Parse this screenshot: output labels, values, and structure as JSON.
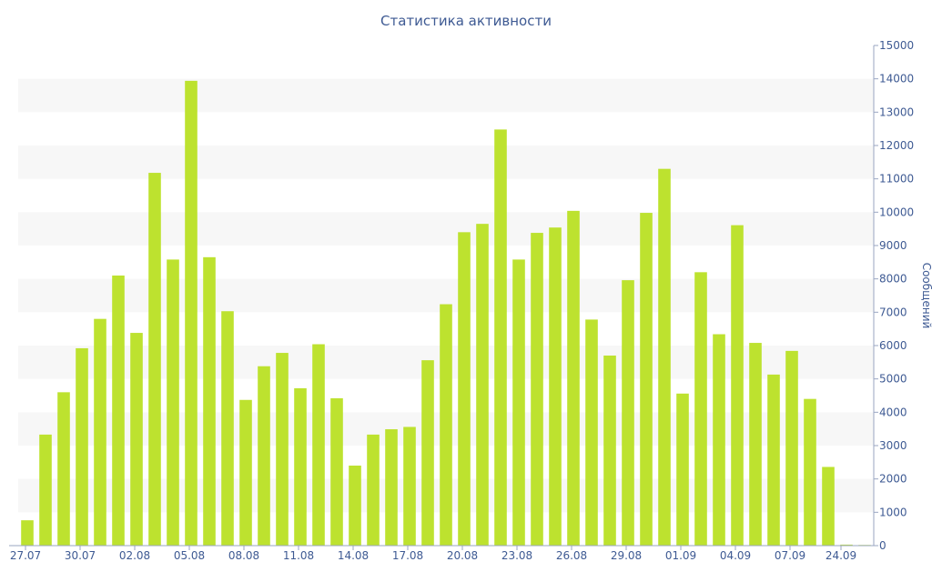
{
  "chart_data": {
    "type": "bar",
    "title": "Статистика активности",
    "ylabel": "Сообщений",
    "xlabel": "",
    "ylim": [
      0,
      15000
    ],
    "y_ticks": [
      0,
      1000,
      2000,
      3000,
      4000,
      5000,
      6000,
      7000,
      8000,
      9000,
      10000,
      11000,
      12000,
      13000,
      14000,
      15000
    ],
    "x_tick_labels": [
      "27.07",
      "30.07",
      "02.08",
      "05.08",
      "08.08",
      "11.08",
      "14.08",
      "17.08",
      "20.08",
      "23.08",
      "26.08",
      "29.08",
      "01.09",
      "04.09",
      "07.09",
      "24.09"
    ],
    "bar_color": "#bde22f",
    "values": [
      760,
      3330,
      4600,
      5920,
      6800,
      8100,
      6380,
      11180,
      8580,
      13940,
      8650,
      7030,
      4370,
      5380,
      5780,
      4720,
      6040,
      4420,
      2400,
      3330,
      3490,
      3560,
      5560,
      7240,
      9400,
      9650,
      12480,
      8580,
      9380,
      9540,
      10040,
      6780,
      5700,
      7960,
      9980,
      11300,
      4560,
      8200,
      6340,
      9610,
      6080,
      5130,
      5840,
      4400,
      2360,
      30,
      20
    ]
  }
}
